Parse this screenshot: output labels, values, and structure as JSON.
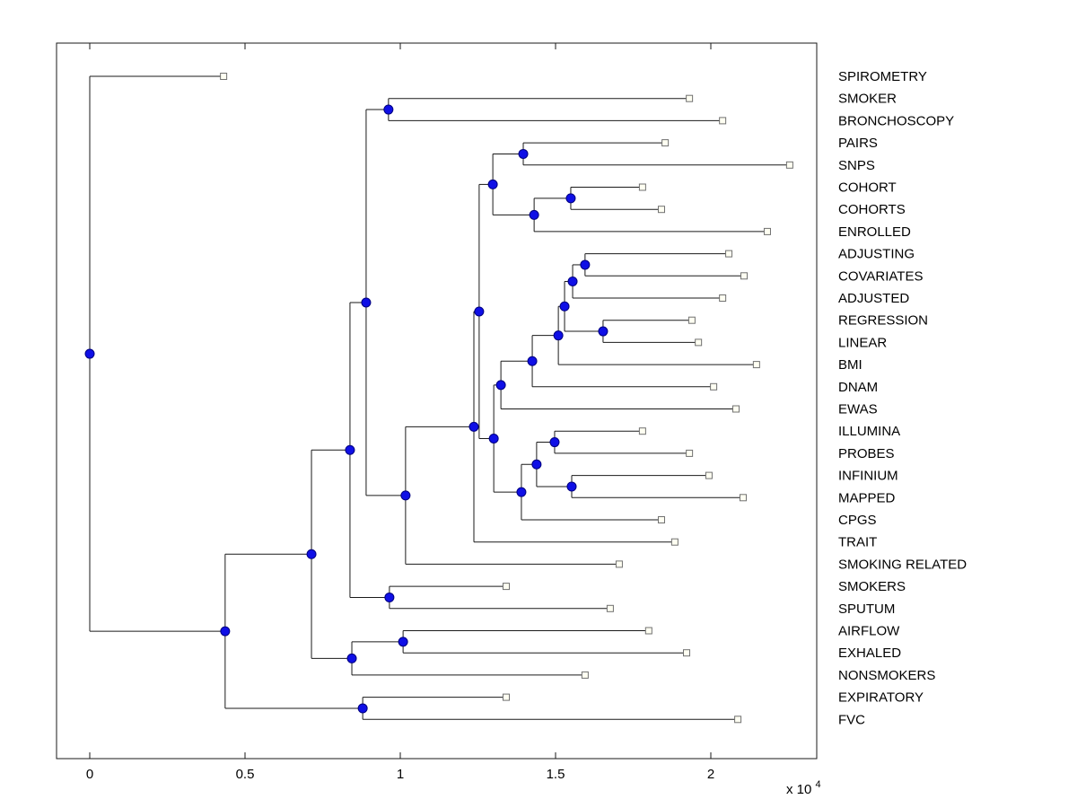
{
  "chart_data": {
    "type": "dendrogram",
    "orientation": "left-to-right",
    "title": "",
    "xlabel": "",
    "ylabel": "",
    "unit_scale": 10000,
    "x_axis": {
      "ticks": [
        0,
        0.5,
        1,
        1.5,
        2
      ],
      "tick_labels": [
        "0",
        "0.5",
        "1",
        "1.5",
        "2"
      ],
      "range": [
        -0.107,
        2.34
      ],
      "multiplier_text": "x 10",
      "multiplier_exp": "4"
    },
    "leaf_labels": [
      "SPIROMETRY",
      "SMOKER",
      "BRONCHOSCOPY",
      "PAIRS",
      "SNPS",
      "COHORT",
      "COHORTS",
      "ENROLLED",
      "ADJUSTING",
      "COVARIATES",
      "ADJUSTED",
      "REGRESSION",
      "LINEAR",
      "BMI",
      "DNAM",
      "EWAS",
      "ILLUMINA",
      "PROBES",
      "INFINIUM",
      "MAPPED",
      "CPGS",
      "TRAIT",
      "SMOKING RELATED",
      "SMOKERS",
      "SPUTUM",
      "AIRFLOW",
      "EXHALED",
      "NONSMOKERS",
      "EXPIRATORY",
      "FVC"
    ],
    "tree": {
      "x": 0.0,
      "children": [
        {
          "name": "SPIROMETRY",
          "x": 0.431
        },
        {
          "x": 0.436,
          "children": [
            {
              "x": 0.714,
              "children": [
                {
                  "x": 0.838,
                  "children": [
                    {
                      "x": 0.89,
                      "children": [
                        {
                          "x": 0.962,
                          "children": [
                            {
                              "name": "SMOKER",
                              "x": 1.931
                            },
                            {
                              "name": "BRONCHOSCOPY",
                              "x": 2.038
                            }
                          ]
                        },
                        {
                          "x": 1.017,
                          "children": [
                            {
                              "x": 1.237,
                              "children": [
                                {
                                  "x": 1.254,
                                  "children": [
                                    {
                                      "x": 1.298,
                                      "children": [
                                        {
                                          "x": 1.396,
                                          "children": [
                                            {
                                              "name": "PAIRS",
                                              "x": 1.853
                                            },
                                            {
                                              "name": "SNPS",
                                              "x": 2.254
                                            }
                                          ]
                                        },
                                        {
                                          "x": 1.431,
                                          "children": [
                                            {
                                              "x": 1.549,
                                              "children": [
                                                {
                                                  "name": "COHORT",
                                                  "x": 1.78
                                                },
                                                {
                                                  "name": "COHORTS",
                                                  "x": 1.841
                                                }
                                              ]
                                            },
                                            {
                                              "name": "ENROLLED",
                                              "x": 2.182
                                            }
                                          ]
                                        }
                                      ]
                                    },
                                    {
                                      "x": 1.301,
                                      "children": [
                                        {
                                          "x": 1.324,
                                          "children": [
                                            {
                                              "x": 1.425,
                                              "children": [
                                                {
                                                  "x": 1.509,
                                                  "children": [
                                                    {
                                                      "x": 1.529,
                                                      "children": [
                                                        {
                                                          "x": 1.555,
                                                          "children": [
                                                            {
                                                              "x": 1.595,
                                                              "children": [
                                                                {
                                                                  "name": "ADJUSTING",
                                                                  "x": 2.058
                                                                },
                                                                {
                                                                  "name": "COVARIATES",
                                                                  "x": 2.107
                                                                }
                                                              ]
                                                            },
                                                            {
                                                              "name": "ADJUSTED",
                                                              "x": 2.038
                                                            }
                                                          ]
                                                        },
                                                        {
                                                          "x": 1.653,
                                                          "children": [
                                                            {
                                                              "name": "REGRESSION",
                                                              "x": 1.939
                                                            },
                                                            {
                                                              "name": "LINEAR",
                                                              "x": 1.96
                                                            }
                                                          ]
                                                        }
                                                      ]
                                                    },
                                                    {
                                                      "name": "BMI",
                                                      "x": 2.147
                                                    }
                                                  ]
                                                },
                                                {
                                                  "name": "DNAM",
                                                  "x": 2.009
                                                }
                                              ]
                                            },
                                            {
                                              "name": "EWAS",
                                              "x": 2.081
                                            }
                                          ]
                                        },
                                        {
                                          "x": 1.39,
                                          "children": [
                                            {
                                              "x": 1.439,
                                              "children": [
                                                {
                                                  "x": 1.497,
                                                  "children": [
                                                    {
                                                      "name": "ILLUMINA",
                                                      "x": 1.78
                                                    },
                                                    {
                                                      "name": "PROBES",
                                                      "x": 1.931
                                                    }
                                                  ]
                                                },
                                                {
                                                  "x": 1.552,
                                                  "children": [
                                                    {
                                                      "name": "INFINIUM",
                                                      "x": 1.994
                                                    },
                                                    {
                                                      "name": "MAPPED",
                                                      "x": 2.104
                                                    }
                                                  ]
                                                }
                                              ]
                                            },
                                            {
                                              "name": "CPGS",
                                              "x": 1.841
                                            }
                                          ]
                                        }
                                      ]
                                    }
                                  ]
                                },
                                {
                                  "name": "TRAIT",
                                  "x": 1.884
                                }
                              ]
                            },
                            {
                              "name": "SMOKING RELATED",
                              "x": 1.705
                            }
                          ]
                        }
                      ]
                    },
                    {
                      "x": 0.965,
                      "children": [
                        {
                          "name": "SMOKERS",
                          "x": 1.341
                        },
                        {
                          "name": "SPUTUM",
                          "x": 1.676
                        }
                      ]
                    }
                  ]
                },
                {
                  "x": 0.844,
                  "children": [
                    {
                      "x": 1.009,
                      "children": [
                        {
                          "name": "AIRFLOW",
                          "x": 1.8
                        },
                        {
                          "name": "EXHALED",
                          "x": 1.922
                        }
                      ]
                    },
                    {
                      "name": "NONSMOKERS",
                      "x": 1.595
                    }
                  ]
                }
              ]
            },
            {
              "x": 0.879,
              "children": [
                {
                  "name": "EXPIRATORY",
                  "x": 1.341
                },
                {
                  "name": "FVC",
                  "x": 2.087
                }
              ]
            }
          ]
        }
      ]
    }
  },
  "style": {
    "background": "#ffffff",
    "line_color": "#1a1a1a",
    "node_color": "#0f0fe6",
    "node_edge_color": "#000080",
    "leaf_marker_fill": "#fffff2",
    "leaf_marker_edge": "#707070",
    "text_color": "#000000"
  }
}
